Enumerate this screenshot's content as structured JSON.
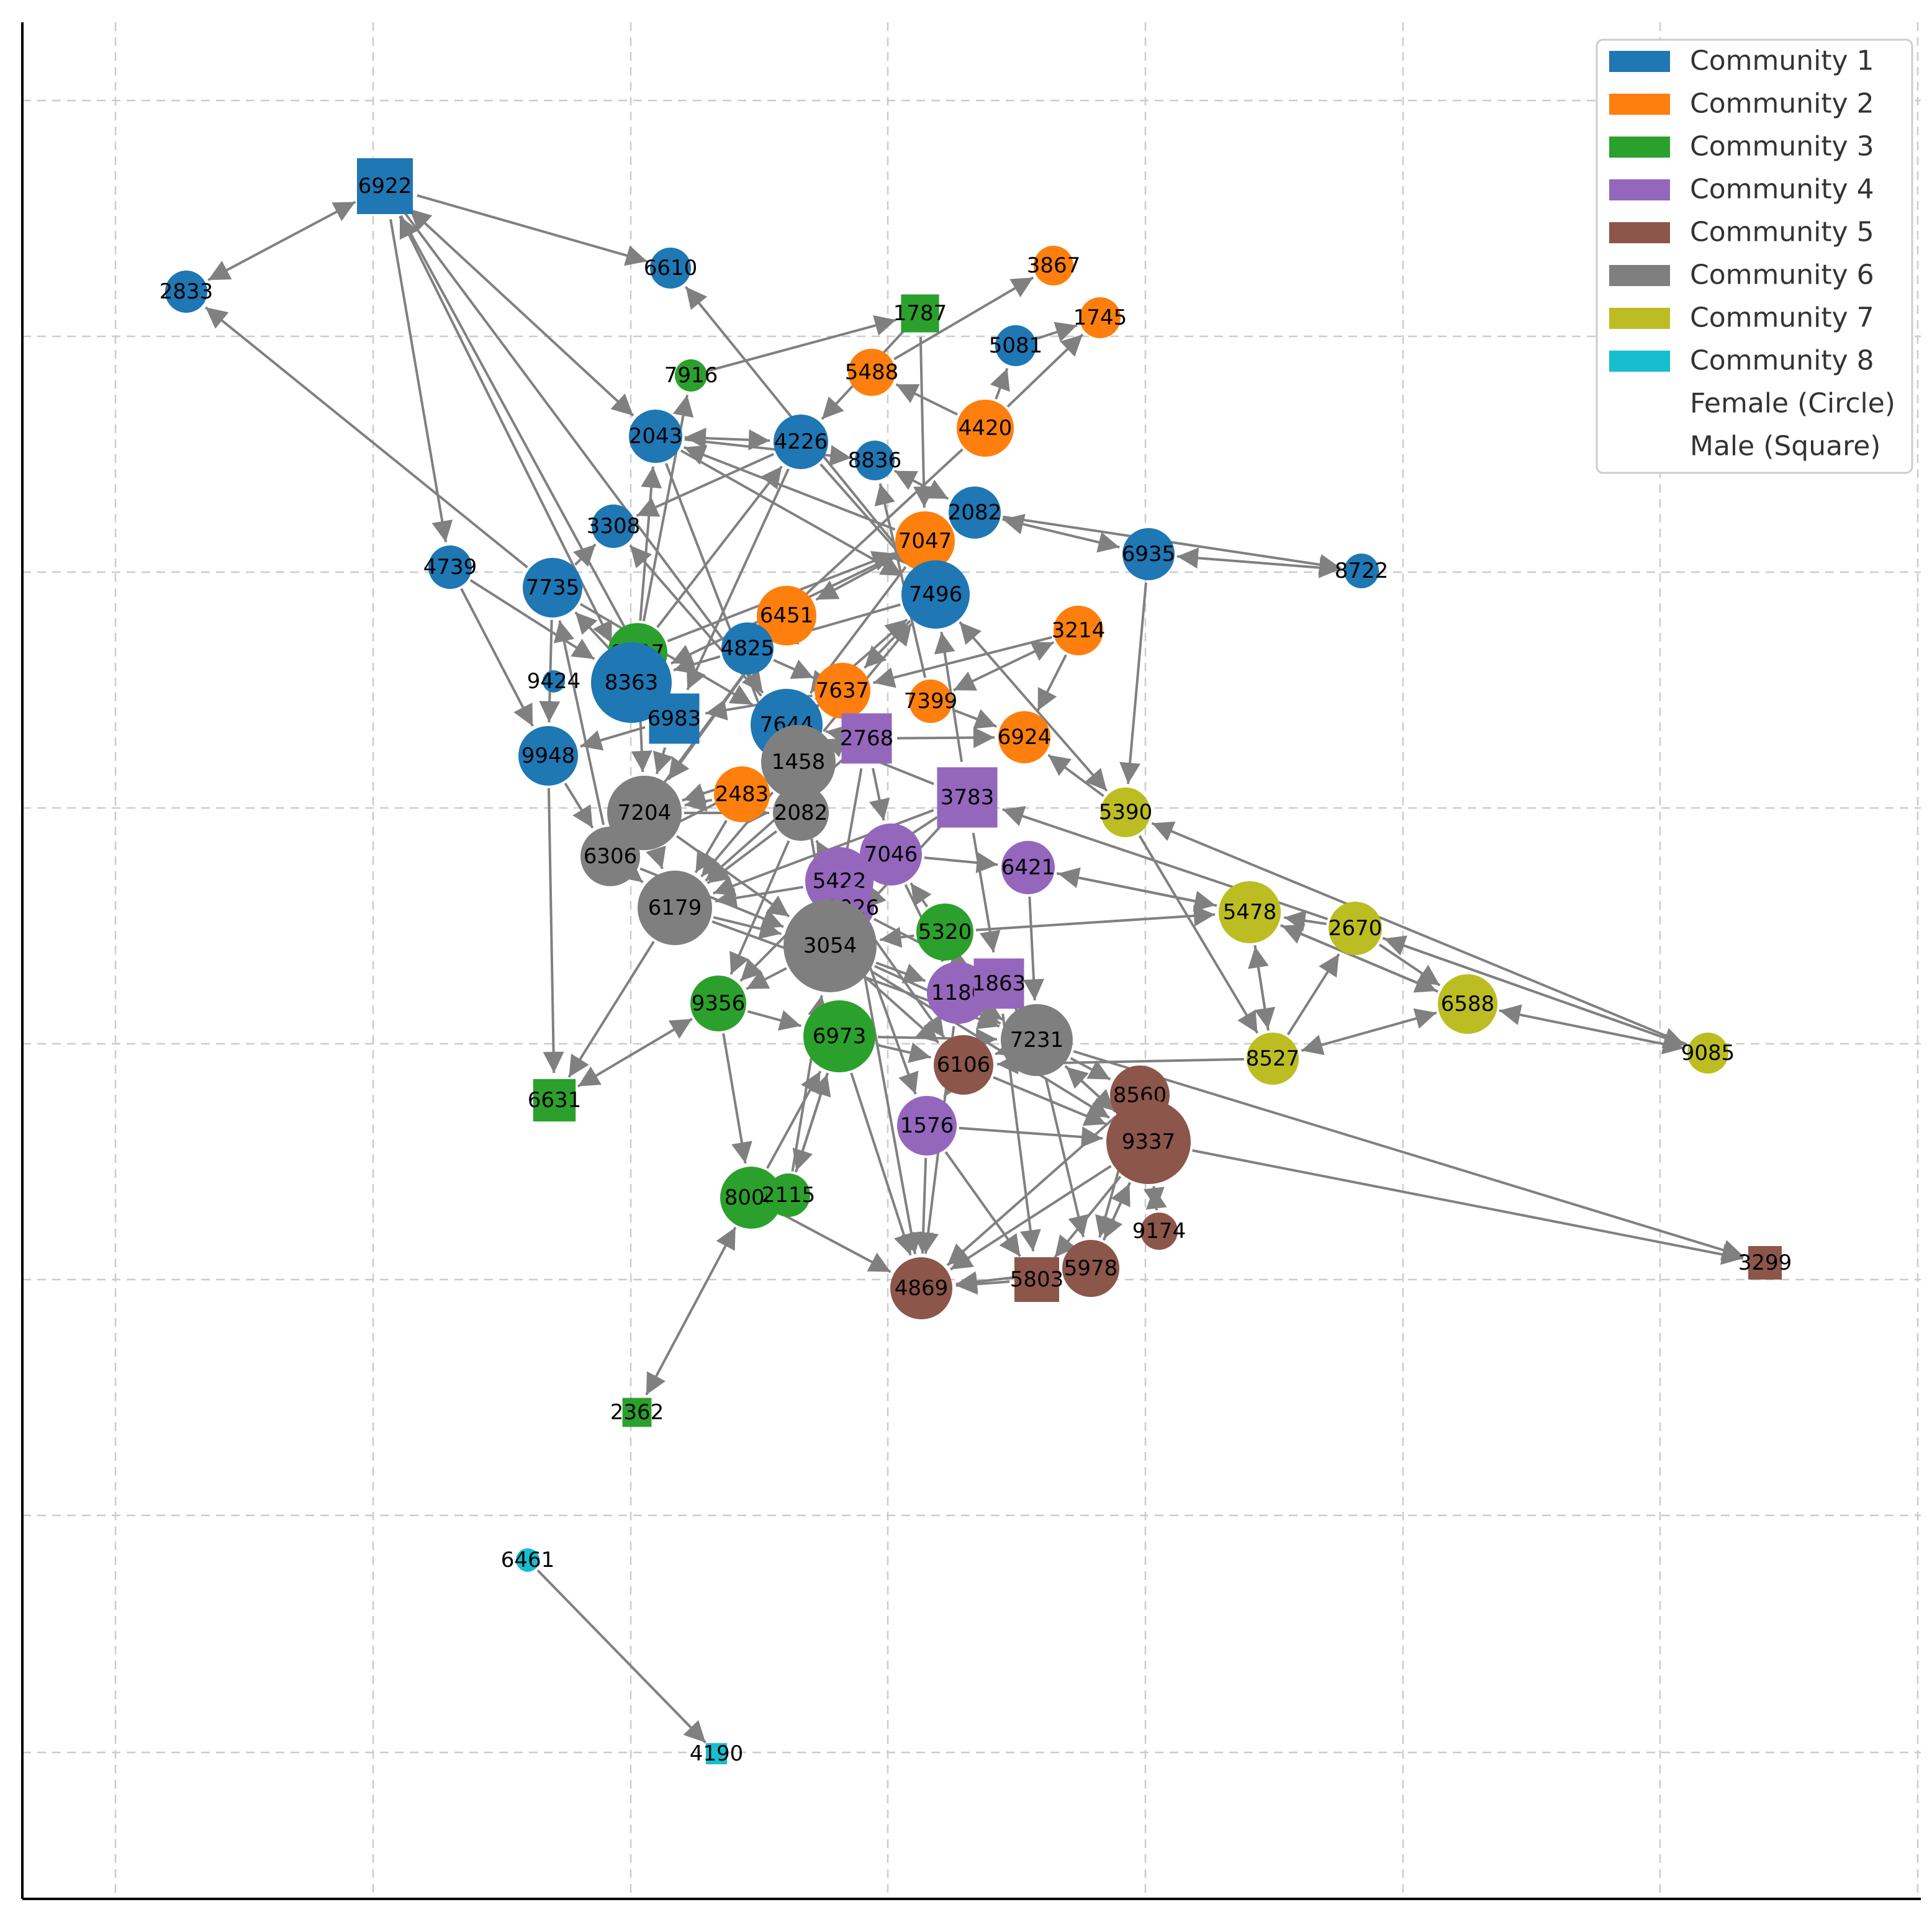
{
  "legend": [
    {
      "label": "Community 1",
      "color": "#1f77b4"
    },
    {
      "label": "Community 2",
      "color": "#ff7f0e"
    },
    {
      "label": "Community 3",
      "color": "#2ca02c"
    },
    {
      "label": "Community 4",
      "color": "#9467bd"
    },
    {
      "label": "Community 5",
      "color": "#8c564b"
    },
    {
      "label": "Community 6",
      "color": "#7f7f7f"
    },
    {
      "label": "Community 7",
      "color": "#bcbd22"
    },
    {
      "label": "Community 8",
      "color": "#17becf"
    }
  ],
  "legend_notes": [
    "Female (Circle)",
    "Male (Square)"
  ],
  "colors": {
    "edge": "#808080",
    "grid": "#cccccc",
    "axis": "#000000"
  },
  "nodes": [
    {
      "id": "6922",
      "community": 1,
      "shape": "square"
    },
    {
      "id": "2833",
      "community": 1,
      "shape": "circle"
    },
    {
      "id": "6610",
      "community": 1,
      "shape": "circle"
    },
    {
      "id": "3867",
      "community": 2,
      "shape": "circle"
    },
    {
      "id": "1787",
      "community": 3,
      "shape": "square"
    },
    {
      "id": "1745",
      "community": 2,
      "shape": "circle"
    },
    {
      "id": "5081",
      "community": 1,
      "shape": "circle"
    },
    {
      "id": "7916",
      "community": 3,
      "shape": "circle"
    },
    {
      "id": "5488",
      "community": 2,
      "shape": "circle"
    },
    {
      "id": "4420",
      "community": 2,
      "shape": "circle"
    },
    {
      "id": "2043",
      "community": 1,
      "shape": "circle"
    },
    {
      "id": "4226",
      "community": 1,
      "shape": "circle"
    },
    {
      "id": "8836",
      "community": 1,
      "shape": "circle"
    },
    {
      "id": "2082a",
      "label": "2082",
      "community": 1,
      "shape": "circle"
    },
    {
      "id": "3308",
      "community": 1,
      "shape": "circle"
    },
    {
      "id": "7047",
      "community": 2,
      "shape": "circle"
    },
    {
      "id": "6935",
      "community": 1,
      "shape": "circle"
    },
    {
      "id": "8722",
      "community": 1,
      "shape": "circle"
    },
    {
      "id": "4739",
      "community": 1,
      "shape": "circle"
    },
    {
      "id": "7735",
      "community": 1,
      "shape": "circle"
    },
    {
      "id": "7496",
      "community": 1,
      "shape": "circle"
    },
    {
      "id": "6451",
      "community": 2,
      "shape": "circle"
    },
    {
      "id": "3214",
      "community": 2,
      "shape": "circle"
    },
    {
      "id": "8207",
      "community": 3,
      "shape": "circle"
    },
    {
      "id": "4825",
      "community": 1,
      "shape": "circle"
    },
    {
      "id": "9424",
      "community": 1,
      "shape": "circle"
    },
    {
      "id": "8363",
      "community": 1,
      "shape": "circle"
    },
    {
      "id": "7637",
      "community": 2,
      "shape": "circle"
    },
    {
      "id": "7399",
      "community": 2,
      "shape": "circle"
    },
    {
      "id": "6983",
      "community": 1,
      "shape": "square"
    },
    {
      "id": "7644",
      "community": 1,
      "shape": "circle"
    },
    {
      "id": "2768",
      "community": 4,
      "shape": "square"
    },
    {
      "id": "6924",
      "community": 2,
      "shape": "circle"
    },
    {
      "id": "9948",
      "community": 1,
      "shape": "circle"
    },
    {
      "id": "1458",
      "community": 6,
      "shape": "circle"
    },
    {
      "id": "3783",
      "community": 4,
      "shape": "square"
    },
    {
      "id": "5390",
      "community": 7,
      "shape": "circle"
    },
    {
      "id": "7204",
      "community": 6,
      "shape": "circle"
    },
    {
      "id": "2483",
      "community": 2,
      "shape": "circle"
    },
    {
      "id": "2082b",
      "label": "2082",
      "community": 6,
      "shape": "circle"
    },
    {
      "id": "6306",
      "community": 6,
      "shape": "circle"
    },
    {
      "id": "7046",
      "community": 4,
      "shape": "circle"
    },
    {
      "id": "6421",
      "community": 4,
      "shape": "circle"
    },
    {
      "id": "5422",
      "community": 4,
      "shape": "circle"
    },
    {
      "id": "6179",
      "community": 6,
      "shape": "circle"
    },
    {
      "id": "9026",
      "community": 4,
      "shape": "circle"
    },
    {
      "id": "5478",
      "community": 7,
      "shape": "circle"
    },
    {
      "id": "2670",
      "community": 7,
      "shape": "circle"
    },
    {
      "id": "5320",
      "community": 3,
      "shape": "circle"
    },
    {
      "id": "3054",
      "community": 6,
      "shape": "circle"
    },
    {
      "id": "1180",
      "community": 4,
      "shape": "circle"
    },
    {
      "id": "1863",
      "community": 4,
      "shape": "square"
    },
    {
      "id": "6588",
      "community": 7,
      "shape": "circle"
    },
    {
      "id": "9356",
      "community": 3,
      "shape": "circle"
    },
    {
      "id": "6973",
      "community": 3,
      "shape": "circle"
    },
    {
      "id": "7231",
      "community": 6,
      "shape": "circle"
    },
    {
      "id": "9085",
      "community": 7,
      "shape": "circle"
    },
    {
      "id": "8527",
      "community": 7,
      "shape": "circle"
    },
    {
      "id": "6631",
      "community": 3,
      "shape": "square"
    },
    {
      "id": "6106",
      "community": 5,
      "shape": "circle"
    },
    {
      "id": "8560",
      "community": 5,
      "shape": "circle"
    },
    {
      "id": "1576",
      "community": 4,
      "shape": "circle"
    },
    {
      "id": "9337",
      "community": 5,
      "shape": "circle"
    },
    {
      "id": "8006",
      "community": 3,
      "shape": "circle"
    },
    {
      "id": "2115",
      "community": 3,
      "shape": "circle"
    },
    {
      "id": "9174",
      "community": 5,
      "shape": "circle"
    },
    {
      "id": "5978",
      "community": 5,
      "shape": "circle"
    },
    {
      "id": "5803",
      "community": 5,
      "shape": "square"
    },
    {
      "id": "4869",
      "community": 5,
      "shape": "circle"
    },
    {
      "id": "3299",
      "community": 5,
      "shape": "square"
    },
    {
      "id": "2362",
      "community": 3,
      "shape": "square"
    },
    {
      "id": "6461",
      "community": 8,
      "shape": "circle"
    },
    {
      "id": "4190",
      "community": 8,
      "shape": "square"
    }
  ],
  "edges": [
    [
      "6922",
      "2833",
      true
    ],
    [
      "6922",
      "6610",
      false
    ],
    [
      "6922",
      "2043",
      true
    ],
    [
      "6922",
      "8363",
      true
    ],
    [
      "6922",
      "4739",
      false
    ],
    [
      "6922",
      "6983",
      false
    ],
    [
      "6922",
      "7644",
      false
    ],
    [
      "7735",
      "2833",
      false
    ],
    [
      "7916",
      "1787",
      false
    ],
    [
      "5488",
      "3867",
      false
    ],
    [
      "5081",
      "1745",
      false
    ],
    [
      "4420",
      "1745",
      false
    ],
    [
      "4420",
      "5488",
      false
    ],
    [
      "4420",
      "5081",
      false
    ],
    [
      "1787",
      "7047",
      false
    ],
    [
      "1787",
      "4226",
      false
    ],
    [
      "2043",
      "4226",
      true
    ],
    [
      "2043",
      "2082b",
      false
    ],
    [
      "2043",
      "8836",
      false
    ],
    [
      "2043",
      "7496",
      false
    ],
    [
      "4226",
      "7496",
      false
    ],
    [
      "4226",
      "6983",
      false
    ],
    [
      "4226",
      "3308",
      false
    ],
    [
      "4420",
      "4825",
      false
    ],
    [
      "8836",
      "2082a",
      true
    ],
    [
      "2082a",
      "6935",
      true
    ],
    [
      "6935",
      "8722",
      true
    ],
    [
      "2082a",
      "8722",
      false
    ],
    [
      "6935",
      "5390",
      false
    ],
    [
      "7496",
      "6610",
      false
    ],
    [
      "7496",
      "4825",
      false
    ],
    [
      "7496",
      "7637",
      false
    ],
    [
      "7496",
      "5390",
      true
    ],
    [
      "3214",
      "7399",
      true
    ],
    [
      "3214",
      "6924",
      false
    ],
    [
      "3214",
      "7637",
      false
    ],
    [
      "7047",
      "6451",
      false
    ],
    [
      "7047",
      "2043",
      false
    ],
    [
      "7047",
      "8363",
      false
    ],
    [
      "7047",
      "7644",
      false
    ],
    [
      "4739",
      "9948",
      false
    ],
    [
      "4739",
      "8363",
      false
    ],
    [
      "7735",
      "3308",
      false
    ],
    [
      "7735",
      "9948",
      false
    ],
    [
      "7735",
      "7644",
      false
    ],
    [
      "8207",
      "2043",
      false
    ],
    [
      "8207",
      "7916",
      false
    ],
    [
      "8207",
      "6983",
      false
    ],
    [
      "8207",
      "7204",
      false
    ],
    [
      "8207",
      "7047",
      false
    ],
    [
      "8207",
      "4226",
      false
    ],
    [
      "4825",
      "7637",
      false
    ],
    [
      "4825",
      "8363",
      false
    ],
    [
      "6451",
      "6306",
      false
    ],
    [
      "6451",
      "4825",
      false
    ],
    [
      "6451",
      "7204",
      false
    ],
    [
      "7637",
      "6983",
      false
    ],
    [
      "7637",
      "7644",
      false
    ],
    [
      "7637",
      "2768",
      false
    ],
    [
      "7399",
      "8836",
      false
    ],
    [
      "7399",
      "6924",
      false
    ],
    [
      "6983",
      "9948",
      false
    ],
    [
      "6983",
      "7204",
      false
    ],
    [
      "6983",
      "7735",
      false
    ],
    [
      "7644",
      "1458",
      false
    ],
    [
      "7644",
      "3308",
      false
    ],
    [
      "7644",
      "7496",
      false
    ],
    [
      "2768",
      "6924",
      false
    ],
    [
      "2768",
      "3054",
      false
    ],
    [
      "2768",
      "7644",
      false
    ],
    [
      "2768",
      "7046",
      false
    ],
    [
      "2768",
      "6179",
      false
    ],
    [
      "9948",
      "6631",
      false
    ],
    [
      "9948",
      "6306",
      false
    ],
    [
      "9948",
      "9948",
      false
    ],
    [
      "1458",
      "7204",
      false
    ],
    [
      "1458",
      "2483",
      false
    ],
    [
      "1458",
      "6179",
      false
    ],
    [
      "1458",
      "3054",
      false
    ],
    [
      "1458",
      "7496",
      false
    ],
    [
      "1458",
      "6306",
      false
    ],
    [
      "3783",
      "7644",
      false
    ],
    [
      "3783",
      "6179",
      false
    ],
    [
      "3783",
      "3054",
      false
    ],
    [
      "3783",
      "7496",
      false
    ],
    [
      "3783",
      "1863",
      false
    ],
    [
      "3783",
      "5422",
      false
    ],
    [
      "5390",
      "6924",
      false
    ],
    [
      "5390",
      "8527",
      false
    ],
    [
      "2670",
      "3783",
      false
    ],
    [
      "2670",
      "5478",
      false
    ],
    [
      "2670",
      "6588",
      false
    ],
    [
      "2670",
      "9085",
      false
    ],
    [
      "7204",
      "6179",
      false
    ],
    [
      "7204",
      "3054",
      false
    ],
    [
      "7204",
      "2082b",
      false
    ],
    [
      "7204",
      "1458",
      false
    ],
    [
      "7204",
      "6306",
      false
    ],
    [
      "2483",
      "6179",
      false
    ],
    [
      "2483",
      "7204",
      false
    ],
    [
      "2082b",
      "9356",
      false
    ],
    [
      "2082b",
      "6179",
      false
    ],
    [
      "2082b",
      "7644",
      false
    ],
    [
      "6306",
      "6179",
      false
    ],
    [
      "6306",
      "7735",
      false
    ],
    [
      "6306",
      "3054",
      false
    ],
    [
      "7046",
      "3054",
      false
    ],
    [
      "7046",
      "5422",
      false
    ],
    [
      "7046",
      "6421",
      false
    ],
    [
      "7046",
      "1180",
      false
    ],
    [
      "6421",
      "7231",
      false
    ],
    [
      "6421",
      "5478",
      false
    ],
    [
      "5422",
      "6179",
      false
    ],
    [
      "5422",
      "9356",
      false
    ],
    [
      "5422",
      "1576",
      false
    ],
    [
      "5422",
      "2082b",
      false
    ],
    [
      "6179",
      "3054",
      false
    ],
    [
      "6179",
      "6631",
      false
    ],
    [
      "6179",
      "7231",
      false
    ],
    [
      "9026",
      "1863",
      false
    ],
    [
      "9026",
      "4869",
      false
    ],
    [
      "9026",
      "6106",
      false
    ],
    [
      "5478",
      "6421",
      false
    ],
    [
      "5478",
      "8527",
      false
    ],
    [
      "5478",
      "6588",
      false
    ],
    [
      "5320",
      "5478",
      false
    ],
    [
      "5320",
      "3054",
      false
    ],
    [
      "5320",
      "7046",
      false
    ],
    [
      "3054",
      "7231",
      false
    ],
    [
      "3054",
      "9356",
      false
    ],
    [
      "3054",
      "6106",
      false
    ],
    [
      "3054",
      "9337",
      false
    ],
    [
      "3054",
      "1180",
      false
    ],
    [
      "1180",
      "7231",
      false
    ],
    [
      "1180",
      "4869",
      false
    ],
    [
      "1863",
      "7231",
      false
    ],
    [
      "1863",
      "5803",
      false
    ],
    [
      "6588",
      "9085",
      true
    ],
    [
      "6588",
      "5478",
      false
    ],
    [
      "6588",
      "8527",
      true
    ],
    [
      "9085",
      "2670",
      false
    ],
    [
      "9085",
      "5390",
      false
    ],
    [
      "9356",
      "6631",
      true
    ],
    [
      "9356",
      "8006",
      false
    ],
    [
      "9356",
      "6973",
      false
    ],
    [
      "6973",
      "2115",
      false
    ],
    [
      "6973",
      "4869",
      false
    ],
    [
      "6973",
      "6106",
      false
    ],
    [
      "6973",
      "7231",
      false
    ],
    [
      "7231",
      "3299",
      false
    ],
    [
      "7231",
      "9337",
      false
    ],
    [
      "7231",
      "8560",
      false
    ],
    [
      "7231",
      "6106",
      false
    ],
    [
      "7231",
      "5978",
      false
    ],
    [
      "8527",
      "2670",
      false
    ],
    [
      "8527",
      "5478",
      false
    ],
    [
      "8527",
      "6106",
      false
    ],
    [
      "6106",
      "9337",
      false
    ],
    [
      "6106",
      "1576",
      false
    ],
    [
      "8560",
      "4869",
      false
    ],
    [
      "8560",
      "5978",
      false
    ],
    [
      "8560",
      "9337",
      false
    ],
    [
      "1576",
      "4869",
      false
    ],
    [
      "1576",
      "9337",
      false
    ],
    [
      "1576",
      "5803",
      false
    ],
    [
      "9337",
      "3299",
      false
    ],
    [
      "9337",
      "9174",
      false
    ],
    [
      "9337",
      "5978",
      false
    ],
    [
      "9337",
      "5803",
      false
    ],
    [
      "9337",
      "4869",
      false
    ],
    [
      "9337",
      "7231",
      false
    ],
    [
      "8006",
      "2362",
      true
    ],
    [
      "8006",
      "4869",
      false
    ],
    [
      "8006",
      "6973",
      false
    ],
    [
      "2115",
      "3054",
      false
    ],
    [
      "2115",
      "6973",
      false
    ],
    [
      "5978",
      "4869",
      false
    ],
    [
      "5803",
      "4869",
      false
    ],
    [
      "5978",
      "9337",
      false
    ],
    [
      "9174",
      "9337",
      false
    ],
    [
      "6461",
      "4190",
      false
    ]
  ]
}
